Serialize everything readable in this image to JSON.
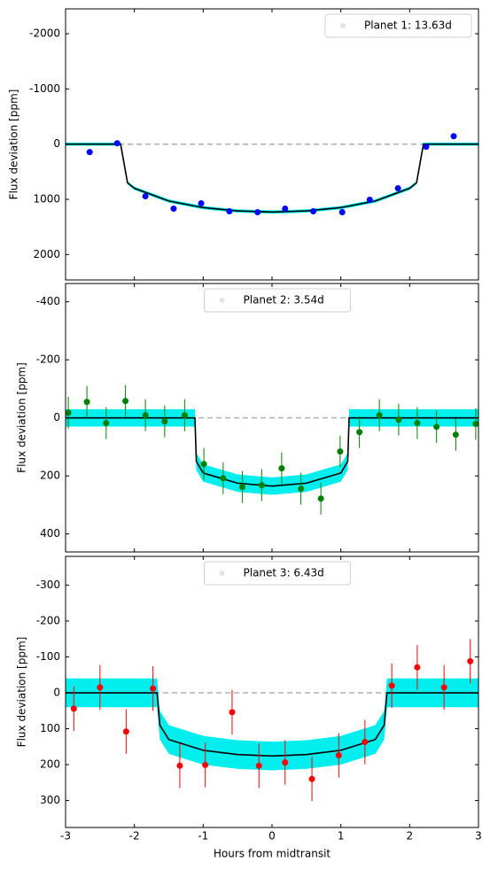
{
  "chart_data": [
    {
      "type": "errorbar",
      "legend": "Planet 1: 13.63d",
      "legend_loc": "upper right",
      "ylabel": "Flux deviation [ppm]",
      "x": [
        -2.65,
        -2.25,
        -1.84,
        -1.43,
        -1.03,
        -0.62,
        -0.21,
        0.19,
        0.6,
        1.02,
        1.42,
        1.83,
        2.24,
        2.64
      ],
      "values": [
        144,
        -16,
        944,
        1168,
        1072,
        1216,
        1232,
        1168,
        1216,
        1232,
        1008,
        800,
        48,
        -144
      ],
      "error": 30,
      "color": "#0000ff",
      "model": {
        "x": [
          -3,
          -2.2,
          -2.1,
          -2.0,
          -1.5,
          -1.0,
          -0.5,
          0,
          0.5,
          1.0,
          1.5,
          2.0,
          2.1,
          2.2,
          3
        ],
        "values": [
          0,
          0,
          700,
          800,
          1030,
          1150,
          1210,
          1230,
          1210,
          1150,
          1030,
          800,
          700,
          0,
          0
        ],
        "color": "#000000",
        "band": 30,
        "band_color": "#00eeee"
      },
      "xlim": [
        -3,
        3
      ],
      "xticks": [
        -3,
        -2,
        -1,
        0,
        1,
        2,
        3
      ],
      "show_xtick_labels": false,
      "ylim": [
        2460,
        -2450
      ],
      "yticks": [
        -2000,
        -1000,
        0,
        1000,
        2000
      ]
    },
    {
      "type": "errorbar",
      "legend": "Planet 2: 3.54d",
      "legend_loc": "upper center",
      "ylabel": "Flux deviation [ppm]",
      "x": [
        -2.96,
        -2.69,
        -2.41,
        -2.13,
        -1.84,
        -1.56,
        -1.27,
        -0.99,
        -0.71,
        -0.43,
        -0.15,
        0.14,
        0.42,
        0.71,
        0.99,
        1.27,
        1.56,
        1.84,
        2.11,
        2.39,
        2.67,
        2.96
      ],
      "values": [
        -18,
        -55,
        18,
        -58,
        -9,
        12,
        -9,
        159,
        208,
        238,
        232,
        174,
        244,
        278,
        116,
        49,
        -9,
        6,
        18,
        31,
        58,
        21
      ],
      "error": 55,
      "color": "#008000",
      "model": {
        "x": [
          -3,
          -1.12,
          -1.1,
          -1.0,
          -0.5,
          0,
          0.5,
          1.0,
          1.1,
          1.12,
          3
        ],
        "values": [
          0,
          0,
          150,
          190,
          225,
          235,
          225,
          190,
          150,
          0,
          0
        ],
        "color": "#000000",
        "band": 30,
        "band_color": "#00eeee"
      },
      "xlim": [
        -3,
        3
      ],
      "xticks": [
        -3,
        -2,
        -1,
        0,
        1,
        2,
        3
      ],
      "show_xtick_labels": false,
      "ylim": [
        462,
        -463
      ],
      "yticks": [
        -400,
        -200,
        0,
        200,
        400
      ]
    },
    {
      "type": "errorbar",
      "legend": "Planet 3: 6.43d",
      "legend_loc": "upper center",
      "ylabel": "Flux deviation [ppm]",
      "xlabel": "Hours from midtransit",
      "x": [
        -2.88,
        -2.5,
        -2.12,
        -1.73,
        -1.34,
        -0.97,
        -0.58,
        -0.19,
        0.19,
        0.58,
        0.97,
        1.35,
        1.74,
        2.11,
        2.5,
        2.88
      ],
      "values": [
        44,
        -15,
        108,
        -12,
        203,
        201,
        54,
        203,
        194,
        240,
        174,
        137,
        -20,
        -71,
        -15,
        -88
      ],
      "error": 62,
      "color": "#ff0000",
      "model": {
        "x": [
          -3,
          -1.67,
          -1.63,
          -1.5,
          -1.0,
          -0.5,
          0,
          0.5,
          1.0,
          1.5,
          1.63,
          1.67,
          3
        ],
        "values": [
          0,
          0,
          90,
          130,
          160,
          172,
          176,
          172,
          160,
          130,
          90,
          0,
          0
        ],
        "color": "#000000",
        "band": 40,
        "band_color": "#00eeee"
      },
      "xlim": [
        -3,
        3
      ],
      "xticks": [
        -3,
        -2,
        -1,
        0,
        1,
        2,
        3
      ],
      "show_xtick_labels": true,
      "ylim": [
        375,
        -380
      ],
      "yticks": [
        -300,
        -200,
        -100,
        0,
        100,
        200,
        300
      ]
    }
  ]
}
